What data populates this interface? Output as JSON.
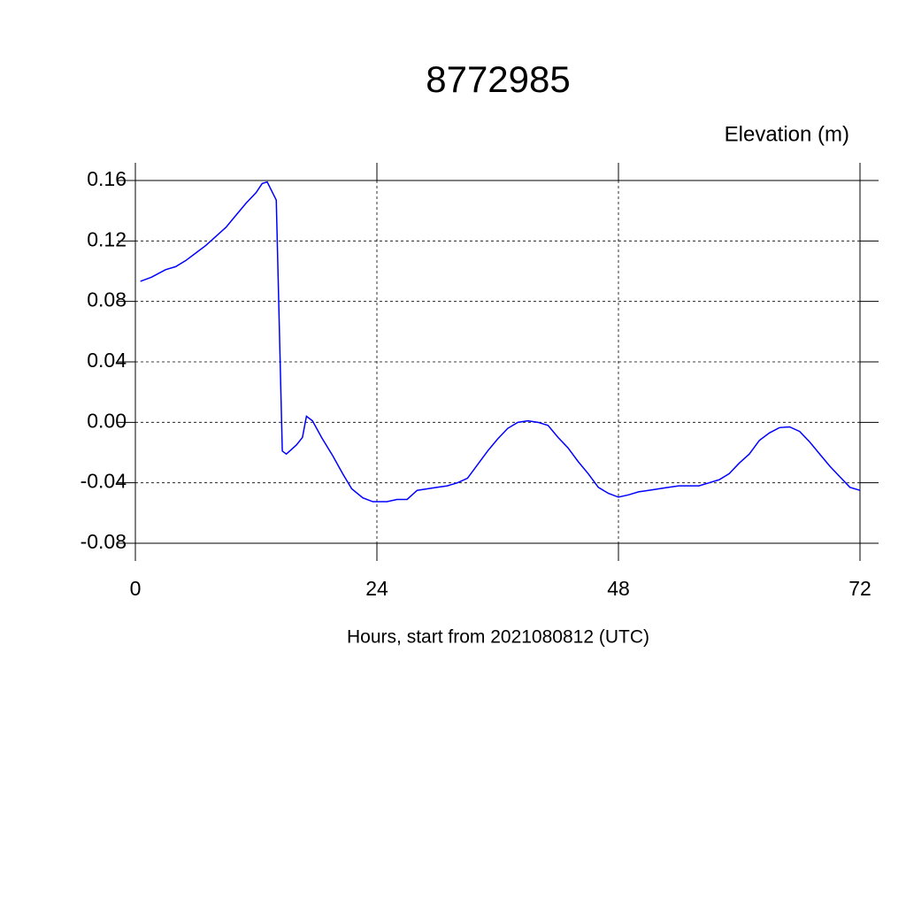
{
  "chart_data": {
    "type": "line",
    "title": "8772985",
    "subtitle": "Elevation (m)",
    "x_label": "Hours, start from 2021080812 (UTC)",
    "xlim": [
      0,
      72
    ],
    "xticks": [
      0,
      24,
      48,
      72
    ],
    "ylim": [
      -0.08,
      0.16
    ],
    "yticks": [
      -0.08,
      -0.04,
      {
        "value": 0,
        "label": "0.00"
      },
      0.04,
      0.08,
      0.12,
      0.16
    ],
    "grid": true,
    "series": [
      {
        "color": "#0000ff",
        "x": [
          0.5,
          1.6,
          3,
          4,
          5,
          6,
          7,
          8,
          9,
          10,
          11,
          12,
          12.6,
          13.1,
          14,
          14.6,
          15,
          16,
          16.6,
          17,
          17.6,
          18.5,
          19.6,
          20.6,
          21.5,
          22.6,
          23.6,
          25,
          26,
          27,
          28,
          29,
          30,
          31,
          32,
          33,
          34,
          35,
          36,
          37,
          38,
          39,
          40,
          41,
          42,
          43,
          44,
          45,
          46,
          47,
          48,
          49,
          50,
          51,
          52,
          53,
          54,
          55,
          56,
          57,
          58,
          59,
          60,
          61,
          62,
          63,
          64,
          65,
          66,
          67,
          68,
          69,
          70,
          71,
          72
        ],
        "values": [
          0.0933,
          0.096,
          0.101,
          0.103,
          0.107,
          0.112,
          0.117,
          0.123,
          0.129,
          0.137,
          0.145,
          0.152,
          0.158,
          0.159,
          0.147,
          -0.019,
          -0.021,
          -0.015,
          -0.01,
          0.004,
          0.001,
          -0.01,
          -0.022,
          -0.034,
          -0.044,
          -0.05,
          -0.0525,
          -0.0525,
          -0.051,
          -0.051,
          -0.045,
          -0.044,
          -0.043,
          -0.042,
          -0.04,
          -0.037,
          -0.028,
          -0.019,
          -0.011,
          -0.004,
          0.0,
          0.001,
          0.0,
          -0.002,
          -0.01,
          -0.017,
          -0.026,
          -0.034,
          -0.043,
          -0.047,
          -0.0495,
          -0.048,
          -0.046,
          -0.045,
          -0.044,
          -0.043,
          -0.042,
          -0.042,
          -0.042,
          -0.04,
          -0.038,
          -0.034,
          -0.027,
          -0.021,
          -0.012,
          -0.007,
          -0.0035,
          -0.003,
          -0.006,
          -0.013,
          -0.021,
          -0.029,
          -0.036,
          -0.043,
          -0.045
        ]
      }
    ]
  }
}
